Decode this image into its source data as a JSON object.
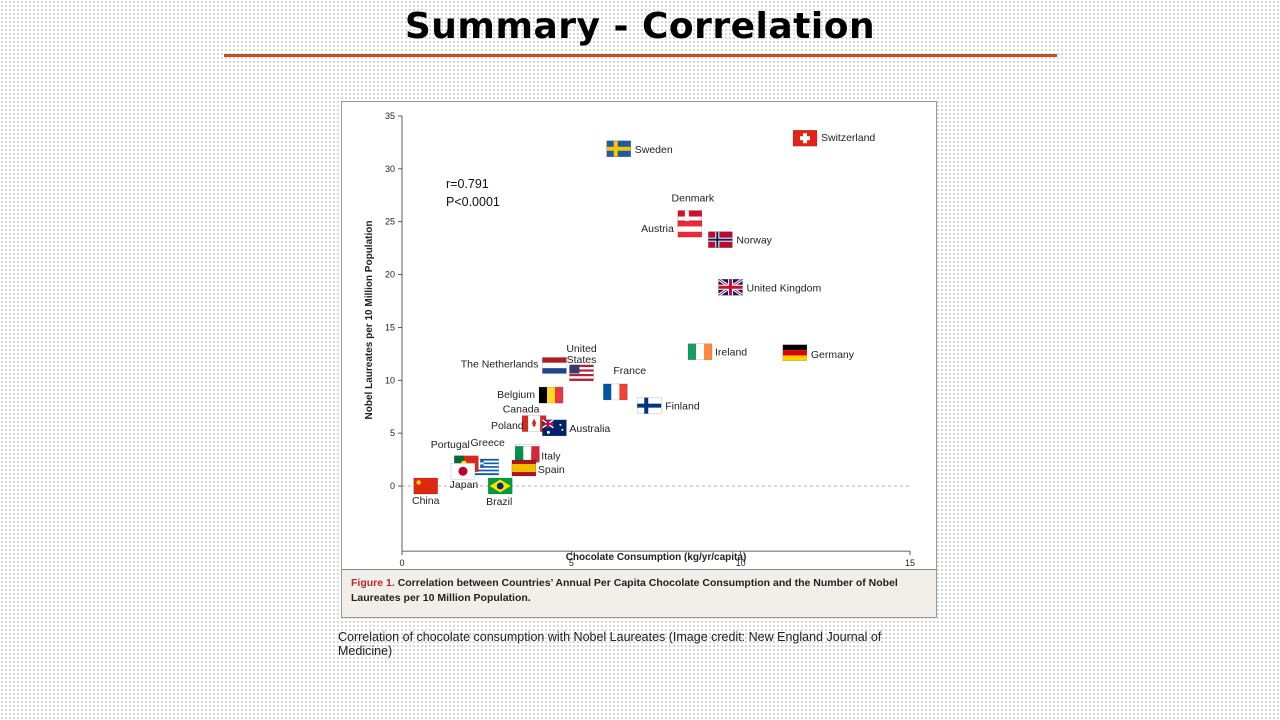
{
  "slide": {
    "title": "Summary - Correlation",
    "image_credit": "Correlation of chocolate consumption with Nobel Laureates (Image credit: New England Journal of Medicine)",
    "accent_color": "#c0501f"
  },
  "figure": {
    "caption_label": "Figure 1.",
    "caption_text": "Correlation between Countries’ Annual Per Capita Chocolate Consumption and the Number of Nobel Laureates per 10 Million Population.",
    "caption_label_color": "#c0272d"
  },
  "chart_data": {
    "type": "scatter",
    "xlabel": "Chocolate Consumption (kg/yr/capita)",
    "ylabel": "Nobel Laureates per 10 Million Population",
    "xlim": [
      0,
      15
    ],
    "ylim": [
      -2,
      35
    ],
    "x_ticks": [
      0,
      5,
      10,
      15
    ],
    "y_ticks": [
      0,
      5,
      10,
      15,
      20,
      25,
      30,
      35
    ],
    "grid": false,
    "zero_reference_line": true,
    "stats": [
      "r=0.791",
      "P<0.0001"
    ],
    "points": [
      {
        "country": "Switzerland",
        "x": 11.9,
        "y": 32.9,
        "flag": "switzerland"
      },
      {
        "country": "Sweden",
        "x": 6.4,
        "y": 31.9,
        "flag": "sweden"
      },
      {
        "country": "Denmark",
        "x": 8.5,
        "y": 25.3,
        "flag": "denmark"
      },
      {
        "country": "Austria",
        "x": 8.5,
        "y": 24.3,
        "flag": "austria"
      },
      {
        "country": "Norway",
        "x": 9.4,
        "y": 23.3,
        "flag": "norway"
      },
      {
        "country": "United Kingdom",
        "x": 9.7,
        "y": 18.8,
        "flag": "uk"
      },
      {
        "country": "Ireland",
        "x": 8.8,
        "y": 12.7,
        "flag": "ireland"
      },
      {
        "country": "Germany",
        "x": 11.6,
        "y": 12.6,
        "flag": "germany"
      },
      {
        "country": "The Netherlands",
        "x": 4.5,
        "y": 11.4,
        "flag": "netherlands"
      },
      {
        "country": "United States",
        "x": 5.3,
        "y": 10.7,
        "flag": "usa"
      },
      {
        "country": "France",
        "x": 6.3,
        "y": 8.9,
        "flag": "france"
      },
      {
        "country": "Finland",
        "x": 7.3,
        "y": 7.6,
        "flag": "finland"
      },
      {
        "country": "Belgium",
        "x": 4.4,
        "y": 8.6,
        "flag": "belgium"
      },
      {
        "country": "Canada",
        "x": 3.9,
        "y": 5.9,
        "flag": "canada"
      },
      {
        "country": "Australia",
        "x": 4.5,
        "y": 5.5,
        "flag": "australia"
      },
      {
        "country": "Poland",
        "x": 3.7,
        "y": 3.2,
        "flag": "poland"
      },
      {
        "country": "Italy",
        "x": 3.7,
        "y": 3.0,
        "flag": "italy"
      },
      {
        "country": "Spain",
        "x": 3.6,
        "y": 1.7,
        "flag": "spain"
      },
      {
        "country": "Greece",
        "x": 2.5,
        "y": 1.8,
        "flag": "greece"
      },
      {
        "country": "Portugal",
        "x": 1.9,
        "y": 2.1,
        "flag": "portugal"
      },
      {
        "country": "Japan",
        "x": 1.8,
        "y": 1.4,
        "flag": "japan"
      },
      {
        "country": "China",
        "x": 0.7,
        "y": 0.0,
        "flag": "china"
      },
      {
        "country": "Brazil",
        "x": 2.9,
        "y": 0.0,
        "flag": "brazil"
      }
    ]
  }
}
